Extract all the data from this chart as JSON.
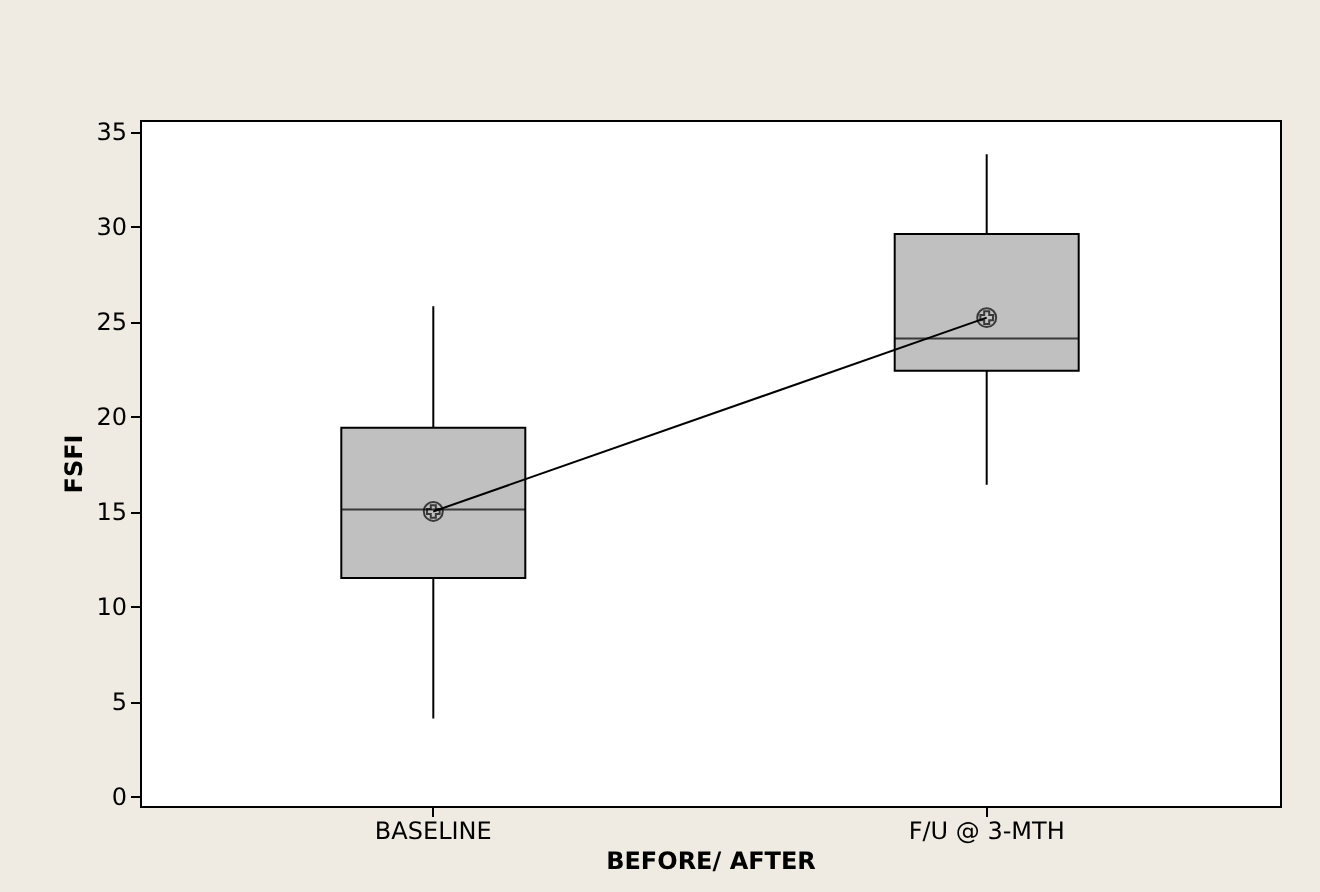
{
  "chart_data": {
    "type": "box",
    "xlabel": "BEFORE/ AFTER",
    "ylabel": "FSFI",
    "categories": [
      "BASELINE",
      "F/U @ 3-MTH"
    ],
    "boxes": [
      {
        "low": 4.1,
        "q1": 11.5,
        "median": 15.1,
        "q3": 19.4,
        "high": 25.8
      },
      {
        "low": 16.4,
        "q1": 22.4,
        "median": 24.1,
        "q3": 29.6,
        "high": 33.8
      }
    ],
    "color": "#c0c0c0",
    "series": [
      {
        "type": "line",
        "values": [
          15.0,
          25.2
        ],
        "color": "#000000",
        "marker": "circle"
      }
    ],
    "ylim": [
      -0.5,
      35.6
    ],
    "yticks": [
      0,
      5,
      10,
      15,
      20,
      25,
      30,
      35
    ],
    "grid": false
  }
}
